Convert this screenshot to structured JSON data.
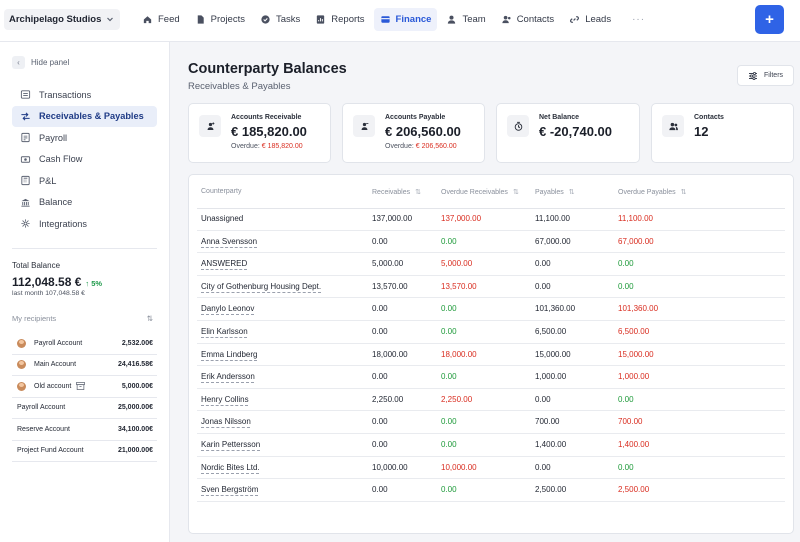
{
  "workspace": {
    "name": "Archipelago Studios"
  },
  "nav": {
    "items": [
      {
        "label": "Feed"
      },
      {
        "label": "Projects"
      },
      {
        "label": "Tasks"
      },
      {
        "label": "Reports"
      },
      {
        "label": "Finance"
      },
      {
        "label": "Team"
      },
      {
        "label": "Contacts"
      },
      {
        "label": "Leads"
      }
    ],
    "more": "···",
    "active": "Finance",
    "plus_label": "+"
  },
  "sidebar": {
    "hide_label": "Hide panel",
    "items": [
      {
        "label": "Transactions",
        "icon": "transactions-icon"
      },
      {
        "label": "Receivables & Payables",
        "icon": "receivables-icon"
      },
      {
        "label": "Payroll",
        "icon": "payroll-icon"
      },
      {
        "label": "Cash Flow",
        "icon": "cash-flow-icon"
      },
      {
        "label": "P&L",
        "icon": "pl-icon"
      },
      {
        "label": "Balance",
        "icon": "bank-icon"
      },
      {
        "label": "Integrations",
        "icon": "integrations-icon"
      }
    ],
    "active": "Receivables & Payables",
    "total_label": "Total Balance",
    "total_value": "112,048.58 €",
    "total_change": "↑ 5%",
    "last_month": "last month 107,048.58 €",
    "recipients_label": "My recipients",
    "recipients": [
      {
        "name": "Payroll Account",
        "amount": "2,532.00€",
        "avatar": true,
        "archived": false
      },
      {
        "name": "Main Account",
        "amount": "24,416.58€",
        "avatar": true,
        "archived": false
      },
      {
        "name": "Old account",
        "amount": "5,000.00€",
        "avatar": true,
        "archived": true
      },
      {
        "name": "Payroll Account",
        "amount": "25,000.00€",
        "avatar": false,
        "archived": false
      },
      {
        "name": "Reserve Account",
        "amount": "34,100.00€",
        "avatar": false,
        "archived": false
      },
      {
        "name": "Project Fund Account",
        "amount": "21,000.00€",
        "avatar": false,
        "archived": false
      }
    ]
  },
  "page": {
    "title": "Counterparty Balances",
    "subtitle": "Receivables & Payables",
    "filters_label": "Filters"
  },
  "cards": [
    {
      "label": "Accounts Receivable",
      "value": "€ 185,820.00",
      "overdue_label": "Overdue:",
      "overdue_value": "€ 185,820.00"
    },
    {
      "label": "Accounts Payable",
      "value": "€ 206,560.00",
      "overdue_label": "Overdue:",
      "overdue_value": "€ 206,560.00"
    },
    {
      "label": "Net Balance",
      "value": "€ -20,740.00"
    },
    {
      "label": "Contacts",
      "value": "12"
    }
  ],
  "table": {
    "columns": [
      "Counterparty",
      "Receivables",
      "Overdue Receivables",
      "Payables",
      "Overdue Payables"
    ],
    "sort_glyph": "⇅",
    "rows": [
      {
        "name": "Unassigned",
        "rec": "137,000.00",
        "ovr": "137,000.00",
        "pay": "11,100.00",
        "ovp": "11,100.00"
      },
      {
        "name": "Anna Svensson",
        "rec": "0.00",
        "ovr": "0.00",
        "pay": "67,000.00",
        "ovp": "67,000.00"
      },
      {
        "name": "ANSWERED",
        "rec": "5,000.00",
        "ovr": "5,000.00",
        "pay": "0.00",
        "ovp": "0.00"
      },
      {
        "name": "City of Gothenburg Housing Dept.",
        "rec": "13,570.00",
        "ovr": "13,570.00",
        "pay": "0.00",
        "ovp": "0.00"
      },
      {
        "name": "Danylo Leonov",
        "rec": "0.00",
        "ovr": "0.00",
        "pay": "101,360.00",
        "ovp": "101,360.00"
      },
      {
        "name": "Elin Karlsson",
        "rec": "0.00",
        "ovr": "0.00",
        "pay": "6,500.00",
        "ovp": "6,500.00"
      },
      {
        "name": "Emma Lindberg",
        "rec": "18,000.00",
        "ovr": "18,000.00",
        "pay": "15,000.00",
        "ovp": "15,000.00"
      },
      {
        "name": "Erik Andersson",
        "rec": "0.00",
        "ovr": "0.00",
        "pay": "1,000.00",
        "ovp": "1,000.00"
      },
      {
        "name": "Henry Collins",
        "rec": "2,250.00",
        "ovr": "2,250.00",
        "pay": "0.00",
        "ovp": "0.00"
      },
      {
        "name": "Jonas Nilsson",
        "rec": "0.00",
        "ovr": "0.00",
        "pay": "700.00",
        "ovp": "700.00"
      },
      {
        "name": "Karin Pettersson",
        "rec": "0.00",
        "ovr": "0.00",
        "pay": "1,400.00",
        "ovp": "1,400.00"
      },
      {
        "name": "Nordic Bites Ltd.",
        "rec": "10,000.00",
        "ovr": "10,000.00",
        "pay": "0.00",
        "ovp": "0.00"
      },
      {
        "name": "Sven Bergström",
        "rec": "0.00",
        "ovr": "0.00",
        "pay": "2,500.00",
        "ovp": "2,500.00"
      }
    ]
  },
  "colors": {
    "accent": "#2f63e6",
    "overdue": "#d92d20",
    "zero": "#1e9a3a",
    "positive_change": "#1e9a4a"
  }
}
